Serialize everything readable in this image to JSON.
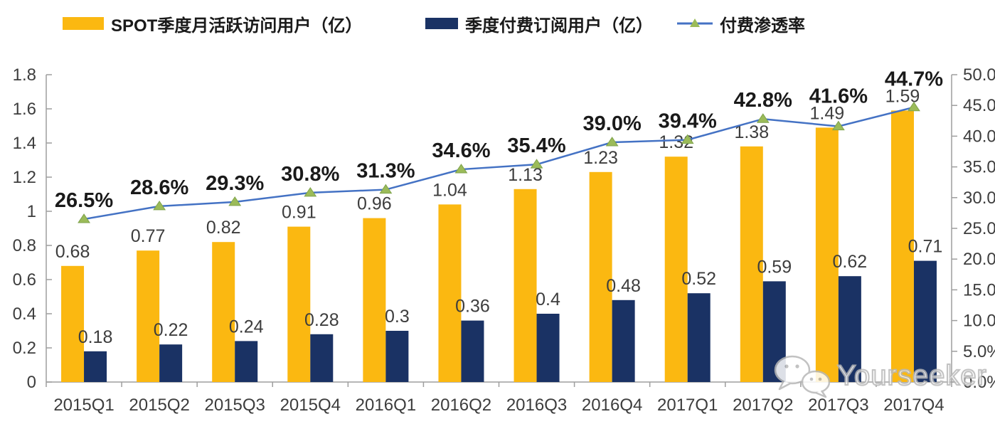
{
  "page": {
    "background": "#FFFFFF"
  },
  "chart_data": {
    "type": "combo-bar-line",
    "title": "",
    "categories": [
      "2015Q1",
      "2015Q2",
      "2015Q3",
      "2015Q4",
      "2016Q1",
      "2016Q2",
      "2016Q3",
      "2016Q4",
      "2017Q1",
      "2017Q2",
      "2017Q3",
      "2017Q4"
    ],
    "series": [
      {
        "name": "SPOT季度月活跃访问用户（亿）",
        "type": "bar",
        "axis": "left",
        "color": "#FBB811",
        "values": [
          0.68,
          0.77,
          0.82,
          0.91,
          0.96,
          1.04,
          1.13,
          1.23,
          1.32,
          1.38,
          1.49,
          1.59
        ],
        "labels": [
          "0.68",
          "0.77",
          "0.82",
          "0.91",
          "0.96",
          "1.04",
          "1.13",
          "1.23",
          "1.32",
          "1.38",
          "1.49",
          "1.59"
        ]
      },
      {
        "name": "季度付费订阅用户（亿）",
        "type": "bar",
        "axis": "left",
        "color": "#1A3264",
        "values": [
          0.18,
          0.22,
          0.24,
          0.28,
          0.3,
          0.36,
          0.4,
          0.48,
          0.52,
          0.59,
          0.62,
          0.71
        ],
        "labels": [
          "0.18",
          "0.22",
          "0.24",
          "0.28",
          "0.3",
          "0.36",
          "0.4",
          "0.48",
          "0.52",
          "0.59",
          "0.62",
          "0.71"
        ]
      },
      {
        "name": "付费渗透率",
        "type": "line",
        "axis": "right",
        "color": "#4472C4",
        "marker": "triangle-up",
        "marker_color": "#9BBB59",
        "values": [
          26.5,
          28.6,
          29.3,
          30.8,
          31.3,
          34.6,
          35.4,
          39.0,
          39.4,
          42.8,
          41.6,
          44.7
        ],
        "labels": [
          "26.5%",
          "28.6%",
          "29.3%",
          "30.8%",
          "31.3%",
          "34.6%",
          "35.4%",
          "39.0%",
          "39.4%",
          "42.8%",
          "41.6%",
          "44.7%"
        ]
      }
    ],
    "left_axis": {
      "min": 0,
      "max": 1.8,
      "tick_labels": [
        "0",
        "0.2",
        "0.4",
        "0.6",
        "0.8",
        "1",
        "1.2",
        "1.4",
        "1.6",
        "1.8"
      ]
    },
    "right_axis": {
      "min": 0,
      "max": 50,
      "tick_labels": [
        "0.0%",
        "5.0%",
        "10.0%",
        "15.0%",
        "20.0%",
        "25.0%",
        "30.0%",
        "35.0%",
        "40.0%",
        "45.0%",
        "50.0%"
      ]
    },
    "grid": false,
    "legend_position": "top",
    "text_color": "#3D3D3D",
    "axis_color": "#9E9E9E",
    "data_label_color": "#3D3D3D",
    "pct_label_color": "#1A1A1A"
  },
  "watermark": {
    "icon": "wechat-icon",
    "text": "Yourseeker"
  }
}
